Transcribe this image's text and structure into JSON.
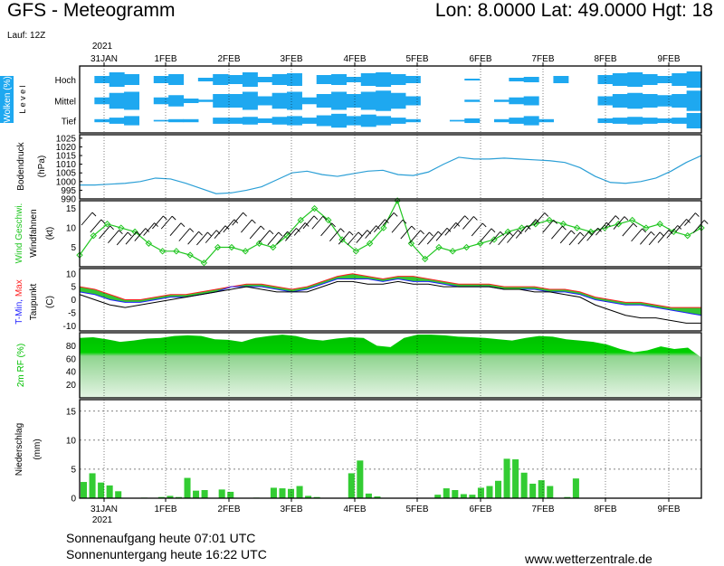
{
  "header": {
    "title": "GFS - Meteogramm",
    "coords": "Lon: 8.0000  Lat: 49.0000  Hgt: 18",
    "run": "Lauf: 12Z"
  },
  "footer": {
    "sunrise": "Sonnenaufgang heute 07:01 UTC",
    "sunset": "Sonnenuntergang heute 16:22 UTC",
    "website": "www.wetterzentrale.de"
  },
  "colors": {
    "cloud": "#1ea8f0",
    "wind": "#22c622",
    "rh_dark": "#00c000",
    "precip": "#33cc33",
    "pressure": "#2b9fd6",
    "tmax": "#ff2020",
    "tmin": "#2020ff"
  },
  "chart_data": [
    {
      "type": "area",
      "panel": "clouds",
      "ylabel": "Wolken (%)",
      "level_axis_label": "L e v e l",
      "level_ticks": [
        "Hoch",
        "Mittel",
        "Tief"
      ],
      "x_top_labels": [
        "31JAN",
        "1FEB",
        "2FEB",
        "3FEB",
        "4FEB",
        "5FEB",
        "6FEB",
        "7FEB",
        "8FEB",
        "9FEB"
      ],
      "year_label": "2021",
      "series": [
        {
          "name": "Hoch",
          "values": [
            0,
            40,
            80,
            60,
            0,
            40,
            60,
            0,
            20,
            60,
            50,
            80,
            30,
            60,
            70,
            0,
            50,
            60,
            30,
            70,
            80,
            60,
            40,
            0,
            0,
            0,
            10,
            0,
            0,
            20,
            30,
            0,
            40,
            0,
            0,
            50,
            70,
            80,
            60,
            40,
            70,
            90
          ]
        },
        {
          "name": "Mittel",
          "values": [
            0,
            30,
            70,
            80,
            0,
            30,
            50,
            20,
            10,
            60,
            60,
            80,
            40,
            70,
            80,
            30,
            60,
            80,
            60,
            80,
            90,
            70,
            40,
            0,
            0,
            0,
            10,
            0,
            10,
            30,
            40,
            0,
            0,
            0,
            0,
            40,
            60,
            70,
            60,
            50,
            60,
            90
          ]
        },
        {
          "name": "Tief",
          "values": [
            0,
            20,
            40,
            60,
            0,
            10,
            20,
            20,
            0,
            40,
            40,
            50,
            30,
            50,
            60,
            40,
            70,
            90,
            60,
            80,
            60,
            40,
            20,
            0,
            0,
            10,
            30,
            0,
            20,
            40,
            60,
            20,
            0,
            0,
            0,
            30,
            40,
            50,
            40,
            30,
            40,
            100
          ]
        }
      ]
    },
    {
      "type": "line",
      "panel": "pressure",
      "ylabel": "Bodendruck",
      "unit": "(hPa)",
      "ylim": [
        990,
        1027
      ],
      "yticks": [
        990,
        995,
        1000,
        1005,
        1010,
        1015,
        1020,
        1025
      ],
      "values": [
        998,
        998,
        998.5,
        999,
        1000,
        1002,
        1001.5,
        999,
        996,
        993,
        993.5,
        995,
        997,
        1001,
        1005,
        1006,
        1004,
        1003,
        1004.5,
        1006,
        1006.5,
        1004,
        1003.5,
        1005.5,
        1010,
        1014,
        1013,
        1013,
        1013.5,
        1013,
        1012.5,
        1012,
        1011,
        1008,
        1003,
        999.5,
        999,
        1000,
        1002,
        1006,
        1011,
        1015
      ]
    },
    {
      "type": "line",
      "panel": "wind",
      "ylabel": "Wind Geschwi.",
      "ylabel2": "Windfahnen",
      "unit": "(kt)",
      "ylim": [
        0,
        17
      ],
      "yticks": [
        5,
        10,
        15
      ],
      "values": [
        3,
        8,
        11,
        10,
        9,
        6,
        4,
        4,
        3,
        1,
        5,
        5,
        4,
        6,
        5,
        8,
        12,
        15,
        12,
        7,
        4,
        6,
        10,
        17,
        6,
        2,
        5,
        4,
        5,
        6,
        7,
        9,
        10,
        11,
        12,
        11,
        10,
        9,
        10,
        11,
        12,
        10,
        11,
        9,
        8,
        10
      ]
    },
    {
      "type": "line",
      "panel": "temperature",
      "ylabel": "T-Min, Max",
      "ylabel2": "Taupunkt",
      "unit": "(C)",
      "ylim": [
        -12,
        12
      ],
      "yticks": [
        -10,
        -5,
        0,
        5,
        10
      ],
      "series": [
        {
          "name": "Max",
          "values": [
            5,
            4,
            2,
            0,
            0,
            1,
            2,
            2,
            3,
            4,
            5,
            6,
            6,
            5,
            4,
            5,
            7,
            9,
            10,
            9,
            8,
            9,
            9,
            8,
            7,
            6,
            6,
            6,
            5,
            5,
            5,
            4,
            4,
            3,
            1,
            0,
            -1,
            -1,
            -2,
            -3,
            -3,
            -3
          ]
        },
        {
          "name": "Min",
          "values": [
            3,
            2,
            0,
            -1,
            -1,
            0,
            1,
            1,
            2,
            3,
            5,
            5,
            5,
            4,
            3,
            4,
            6,
            8,
            8,
            8,
            7,
            8,
            7,
            7,
            6,
            5,
            5,
            5,
            4,
            4,
            4,
            3,
            3,
            2,
            0,
            -1,
            -2,
            -2,
            -3,
            -4,
            -5,
            -6
          ]
        },
        {
          "name": "Taupunkt",
          "values": [
            2,
            0,
            -2,
            -3,
            -2,
            -1,
            0,
            1,
            2,
            3,
            4,
            5,
            4,
            3,
            3,
            3,
            5,
            7,
            7,
            6,
            6,
            7,
            6,
            6,
            5,
            5,
            5,
            5,
            4,
            4,
            3,
            3,
            2,
            1,
            -2,
            -4,
            -6,
            -7,
            -7,
            -8,
            -9,
            -9
          ]
        }
      ]
    },
    {
      "type": "area",
      "panel": "humidity",
      "ylabel": "2m RF (%)",
      "ylim": [
        0,
        100
      ],
      "yticks": [
        20,
        40,
        60,
        80
      ],
      "values": [
        92,
        93,
        90,
        86,
        88,
        91,
        92,
        95,
        96,
        95,
        90,
        89,
        86,
        92,
        95,
        97,
        95,
        90,
        88,
        91,
        93,
        92,
        80,
        78,
        92,
        97,
        97,
        96,
        94,
        93,
        92,
        90,
        88,
        92,
        95,
        94,
        90,
        88,
        86,
        82,
        75,
        70,
        73,
        79,
        75,
        77,
        62
      ]
    },
    {
      "type": "bar",
      "panel": "precipitation",
      "ylabel": "Niederschlag",
      "unit": "(mm)",
      "ylim": [
        0,
        17
      ],
      "yticks": [
        5,
        10,
        15
      ],
      "x_bottom_labels": [
        "31JAN",
        "1FEB",
        "2FEB",
        "3FEB",
        "4FEB",
        "5FEB",
        "6FEB",
        "7FEB",
        "8FEB",
        "9FEB"
      ],
      "year_label": "2021",
      "values": [
        2.8,
        4.3,
        2.7,
        2.2,
        1.2,
        0,
        0,
        0.1,
        0,
        0.2,
        0.4,
        0.2,
        3.5,
        1.3,
        1.4,
        0,
        1.5,
        1.1,
        0,
        0,
        0.1,
        0,
        1.8,
        1.7,
        1.6,
        2.1,
        0.4,
        0.2,
        0,
        0,
        0,
        4.3,
        6.5,
        0.8,
        0.3,
        0,
        0,
        0,
        0,
        0,
        0,
        0.6,
        1.7,
        1.4,
        0.7,
        0.6,
        1.8,
        2.1,
        3.0,
        6.8,
        6.7,
        4.4,
        2.5,
        3.1,
        2.1,
        0,
        0.2,
        3.4,
        0,
        0,
        0,
        0,
        0,
        0,
        0,
        0,
        0,
        0,
        0,
        0,
        0,
        0
      ]
    }
  ]
}
